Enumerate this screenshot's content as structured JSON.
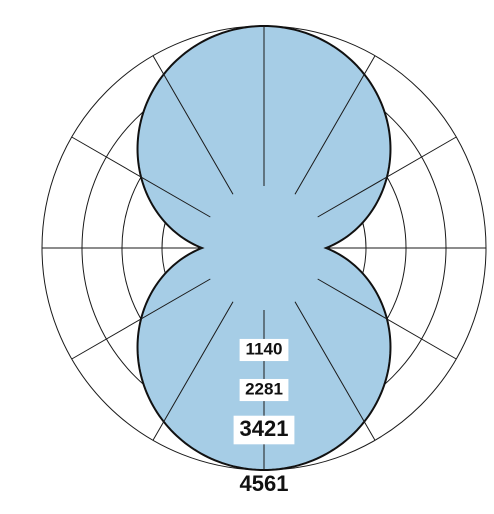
{
  "chart_data": {
    "type": "polar",
    "series": [
      {
        "values": [
          {
            "theta": 0,
            "r": 4561
          },
          {
            "theta": 30,
            "r": 3950
          },
          {
            "theta": 60,
            "r": 2281
          },
          {
            "theta": 90,
            "r": 0
          },
          {
            "theta": 120,
            "r": 2281
          },
          {
            "theta": 150,
            "r": 3950
          },
          {
            "theta": 180,
            "r": 4561
          },
          {
            "theta": 210,
            "r": 3950
          },
          {
            "theta": 240,
            "r": 2281
          },
          {
            "theta": 270,
            "r": 0
          },
          {
            "theta": 300,
            "r": 2281
          },
          {
            "theta": 330,
            "r": 3950
          }
        ],
        "color": "#a6cde6",
        "edge_color": "#111111"
      }
    ],
    "radial_ticks": [
      1140,
      2281,
      3421,
      4561
    ],
    "radial_tick_labels": [
      "1140",
      "2281",
      "3421",
      "4561"
    ],
    "inner_radius": 0,
    "angular_gridlines_every_deg": 30,
    "r_max": 4561,
    "zero_direction": "top",
    "grid": true,
    "legend": "none",
    "colors": {
      "fill": "#a6cde6",
      "edge": "#111111",
      "grid": "#1a1a1a"
    }
  }
}
